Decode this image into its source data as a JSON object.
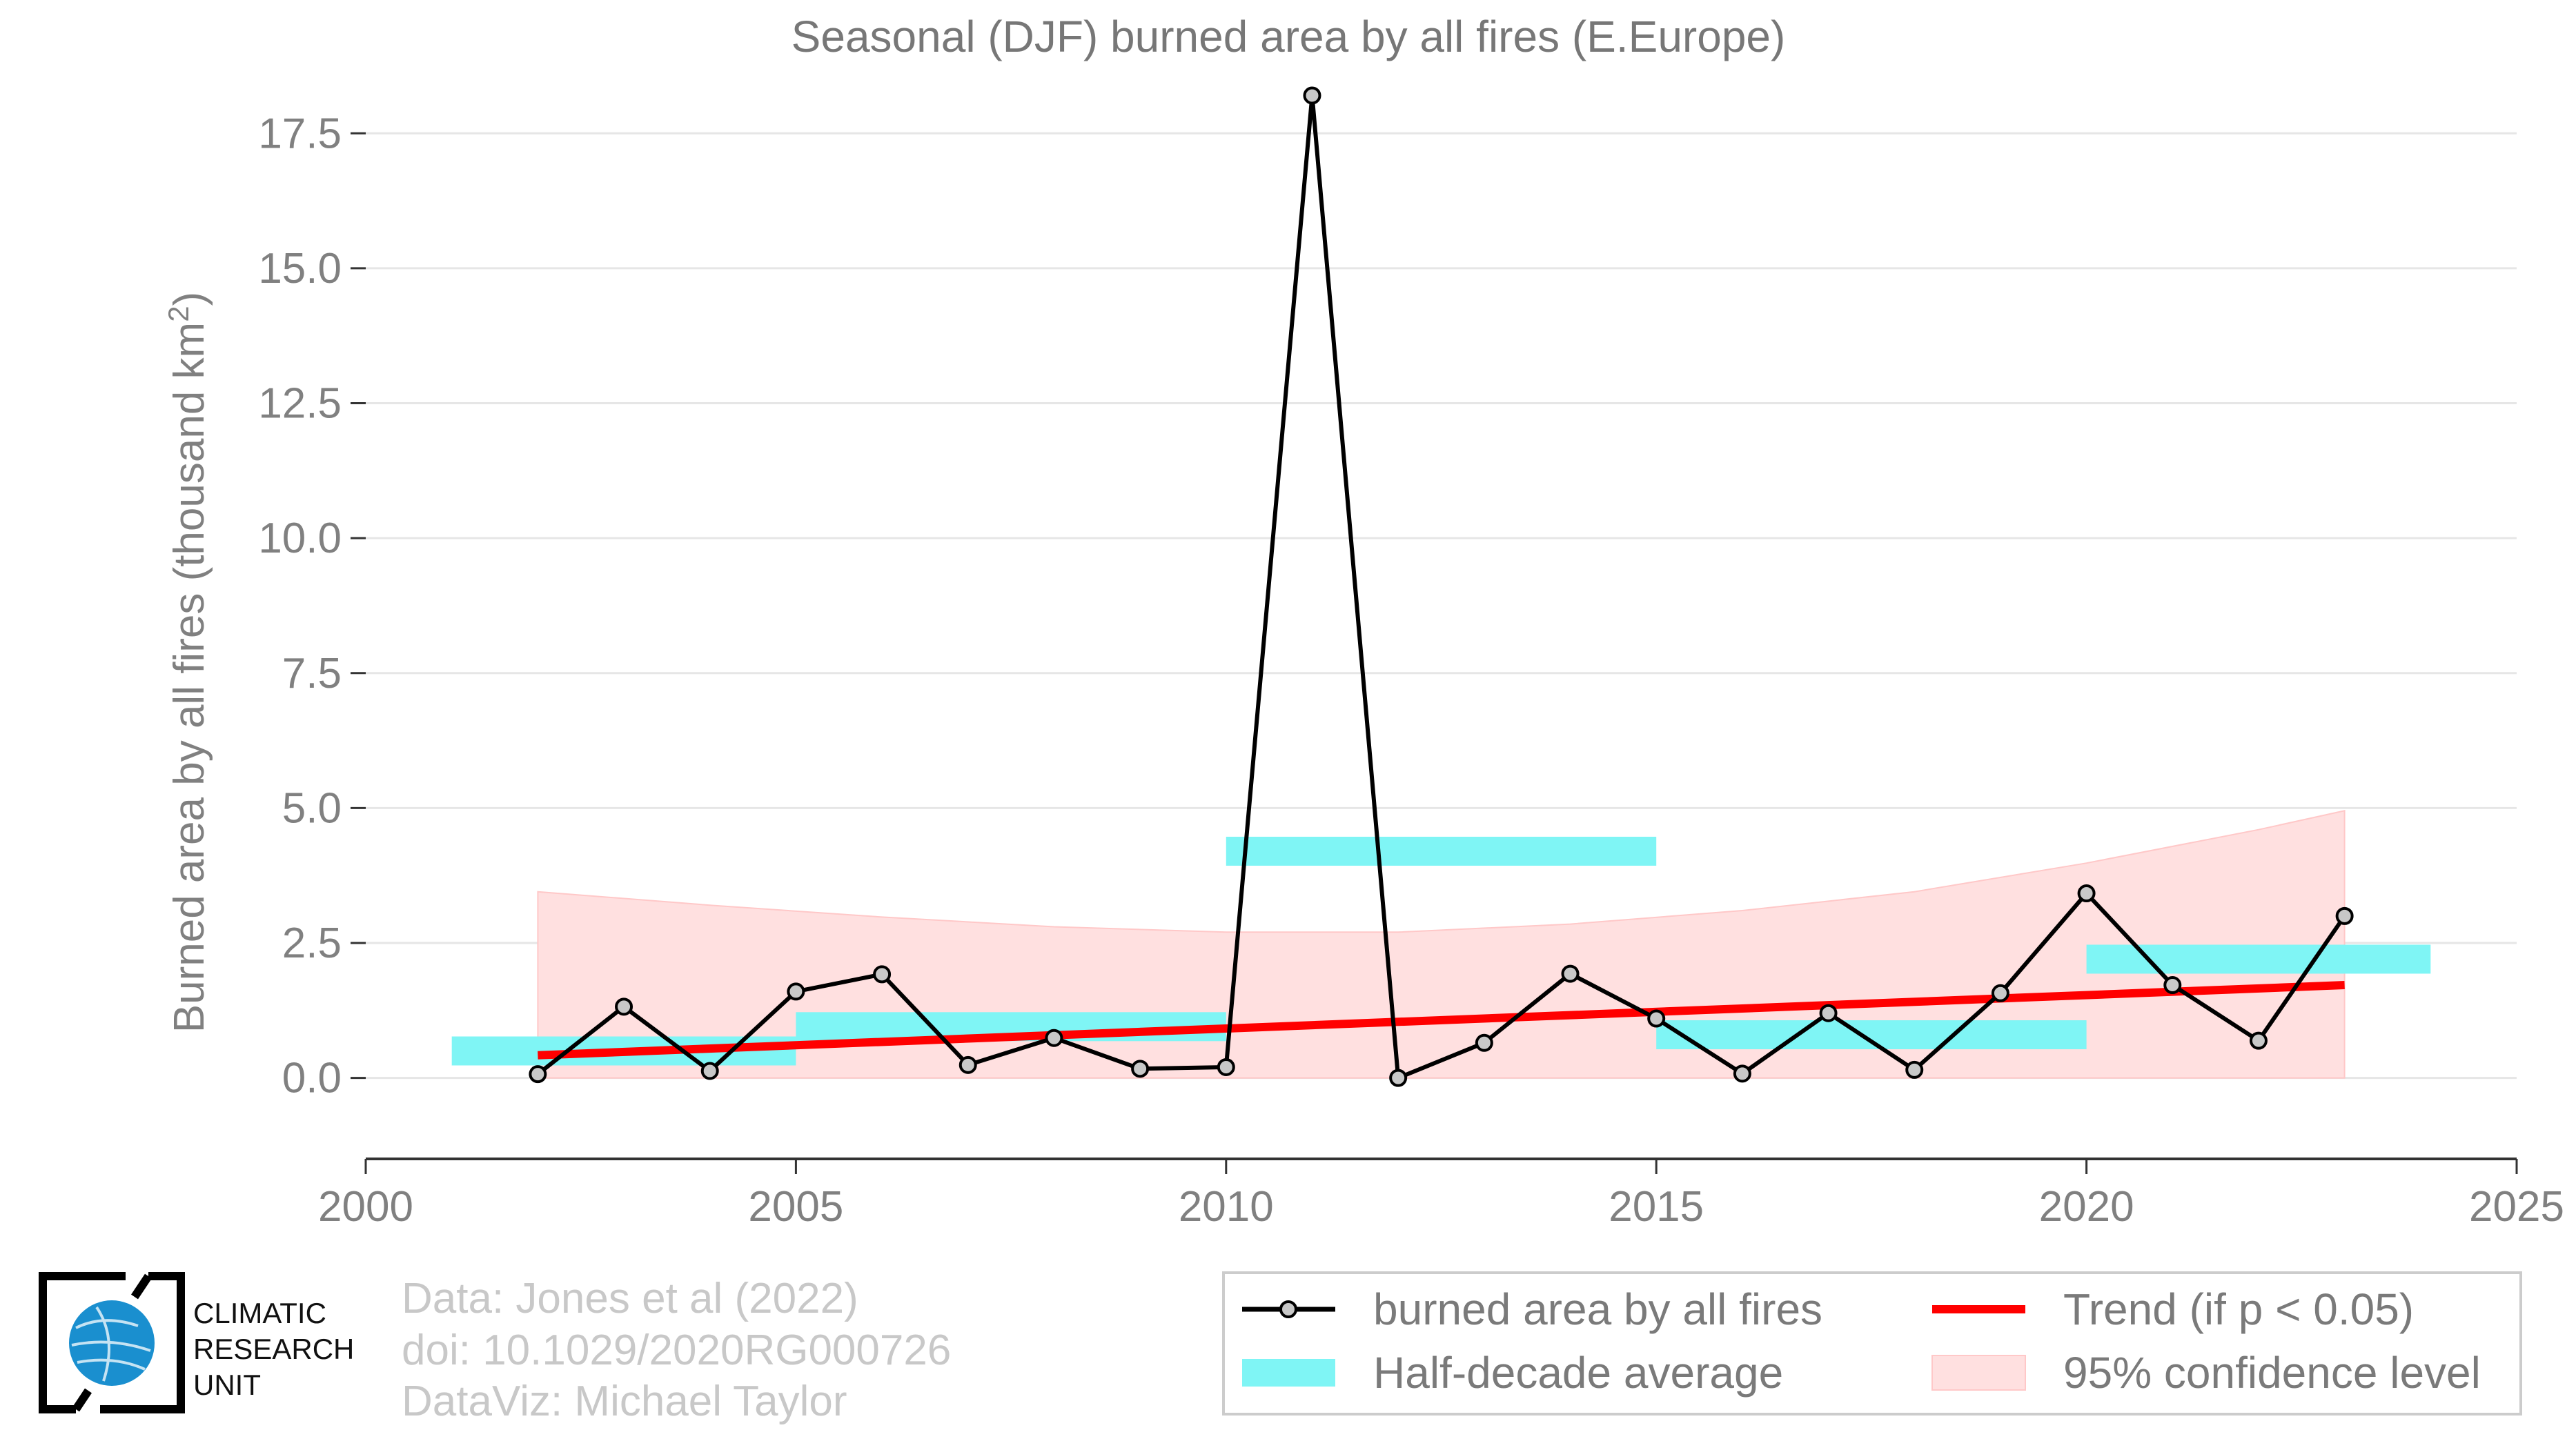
{
  "chart_data": {
    "type": "line",
    "title": "Seasonal (DJF) burned area by all fires (E.Europe)",
    "xlabel": "",
    "ylabel": "Burned area by all fires (thousand km",
    "ylabel_sup": "2",
    "ylabel_end": ")",
    "xlim": [
      2000,
      2025
    ],
    "ylim": [
      -1.5,
      18.5
    ],
    "xticks": [
      2000,
      2005,
      2010,
      2015,
      2020,
      2025
    ],
    "xtick_labels": [
      "2000",
      "2005",
      "2010",
      "2015",
      "2020",
      "2025"
    ],
    "yticks": [
      0,
      2.5,
      5,
      7.5,
      10,
      12.5,
      15,
      17.5
    ],
    "ytick_labels": [
      "0.0",
      "2.5",
      "5.0",
      "7.5",
      "10.0",
      "12.5",
      "15.0",
      "17.5"
    ],
    "grid": true,
    "series": [
      {
        "name": "burned area by all fires",
        "color": "#000000",
        "x": [
          2002,
          2003,
          2004,
          2005,
          2006,
          2007,
          2008,
          2009,
          2010,
          2011,
          2012,
          2013,
          2014,
          2015,
          2016,
          2017,
          2018,
          2019,
          2020,
          2021,
          2022,
          2023
        ],
        "y": [
          0.07,
          1.32,
          0.13,
          1.6,
          1.92,
          0.24,
          0.74,
          0.17,
          0.2,
          18.2,
          0.0,
          0.65,
          1.93,
          1.1,
          0.08,
          1.2,
          0.15,
          1.57,
          3.42,
          1.72,
          0.69,
          3.0
        ]
      },
      {
        "name": "Half-decade average",
        "color": "#7ff5f5",
        "segments": [
          {
            "x_start": 2001,
            "x_end": 2005,
            "y": 0.5
          },
          {
            "x_start": 2005,
            "x_end": 2010,
            "y": 0.95
          },
          {
            "x_start": 2010,
            "x_end": 2015,
            "y": 4.2
          },
          {
            "x_start": 2015,
            "x_end": 2020,
            "y": 0.8
          },
          {
            "x_start": 2020,
            "x_end": 2024,
            "y": 2.2
          }
        ]
      },
      {
        "name": "Trend (if p < 0.05)",
        "color": "#ff0000",
        "x": [
          2002,
          2023
        ],
        "y": [
          0.42,
          1.72
        ]
      },
      {
        "name": "95% confidence level",
        "color": "#ffe0e0",
        "x": [
          2002,
          2004,
          2006,
          2008,
          2010,
          2012,
          2014,
          2016,
          2018,
          2020,
          2022,
          2023
        ],
        "upper": [
          3.45,
          3.2,
          2.98,
          2.8,
          2.7,
          2.7,
          2.85,
          3.1,
          3.45,
          3.98,
          4.6,
          4.95
        ],
        "lower": [
          0,
          0,
          0,
          0,
          0,
          0,
          0,
          0,
          0,
          0,
          0,
          0
        ]
      }
    ],
    "legend": {
      "position": "bottom-right",
      "entries": [
        "burned area by all fires",
        "Trend (if p < 0.05)",
        "Half-decade average",
        "95% confidence level"
      ]
    }
  },
  "credits": {
    "line1": "Data: Jones et al (2022)",
    "line2": "doi: 10.1029/2020RG000726",
    "line3": "DataViz: Michael Taylor"
  },
  "logo": {
    "line1": "CLIMATIC",
    "line2": "RESEARCH",
    "line3": "UNIT",
    "globe_color": "#1a8fcf"
  }
}
